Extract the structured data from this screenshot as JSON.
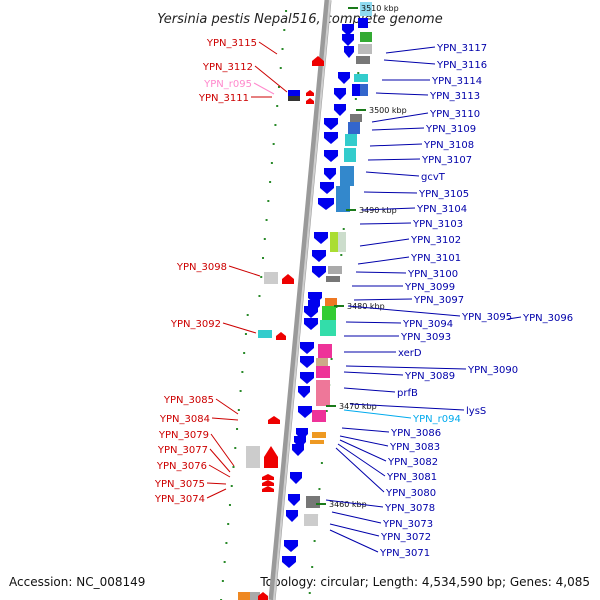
{
  "title": "Yersinia pestis Nepal516, complete genome",
  "accession": "Accession: NC_008149",
  "topology": "Topology: circular; Length: 4,534,590 bp; Genes: 4,085",
  "colors": {
    "left_label": "#cc0000",
    "right_label": "#0000aa",
    "rna_left": "#ff88cc",
    "rna_right": "#00aaee"
  },
  "kbp_marks": [
    "3510 kbp",
    "3500 kbp",
    "3490 kbp",
    "3480 kbp",
    "3470 kbp",
    "3460 kbp"
  ],
  "left_labels": [
    "YPN_3115",
    "YPN_3112",
    "YPN_r095",
    "YPN_3111",
    "YPN_3098",
    "YPN_3092",
    "YPN_3085",
    "YPN_3084",
    "YPN_3079",
    "YPN_3077",
    "YPN_3076",
    "YPN_3075",
    "YPN_3074"
  ],
  "right_labels": [
    "YPN_3117",
    "YPN_3116",
    "YPN_3114",
    "YPN_3113",
    "YPN_3110",
    "YPN_3109",
    "YPN_3108",
    "YPN_3107",
    "gcvT",
    "YPN_3105",
    "YPN_3104",
    "YPN_3103",
    "YPN_3102",
    "YPN_3101",
    "YPN_3100",
    "YPN_3099",
    "YPN_3097",
    "YPN_3095",
    "YPN_3096",
    "YPN_3094",
    "YPN_3093",
    "xerD",
    "YPN_3090",
    "YPN_3089",
    "prfB",
    "lysS",
    "YPN_r094",
    "YPN_3086",
    "YPN_3083",
    "YPN_3082",
    "YPN_3081",
    "YPN_3080",
    "YPN_3078",
    "YPN_3073",
    "YPN_3072",
    "YPN_3071"
  ]
}
